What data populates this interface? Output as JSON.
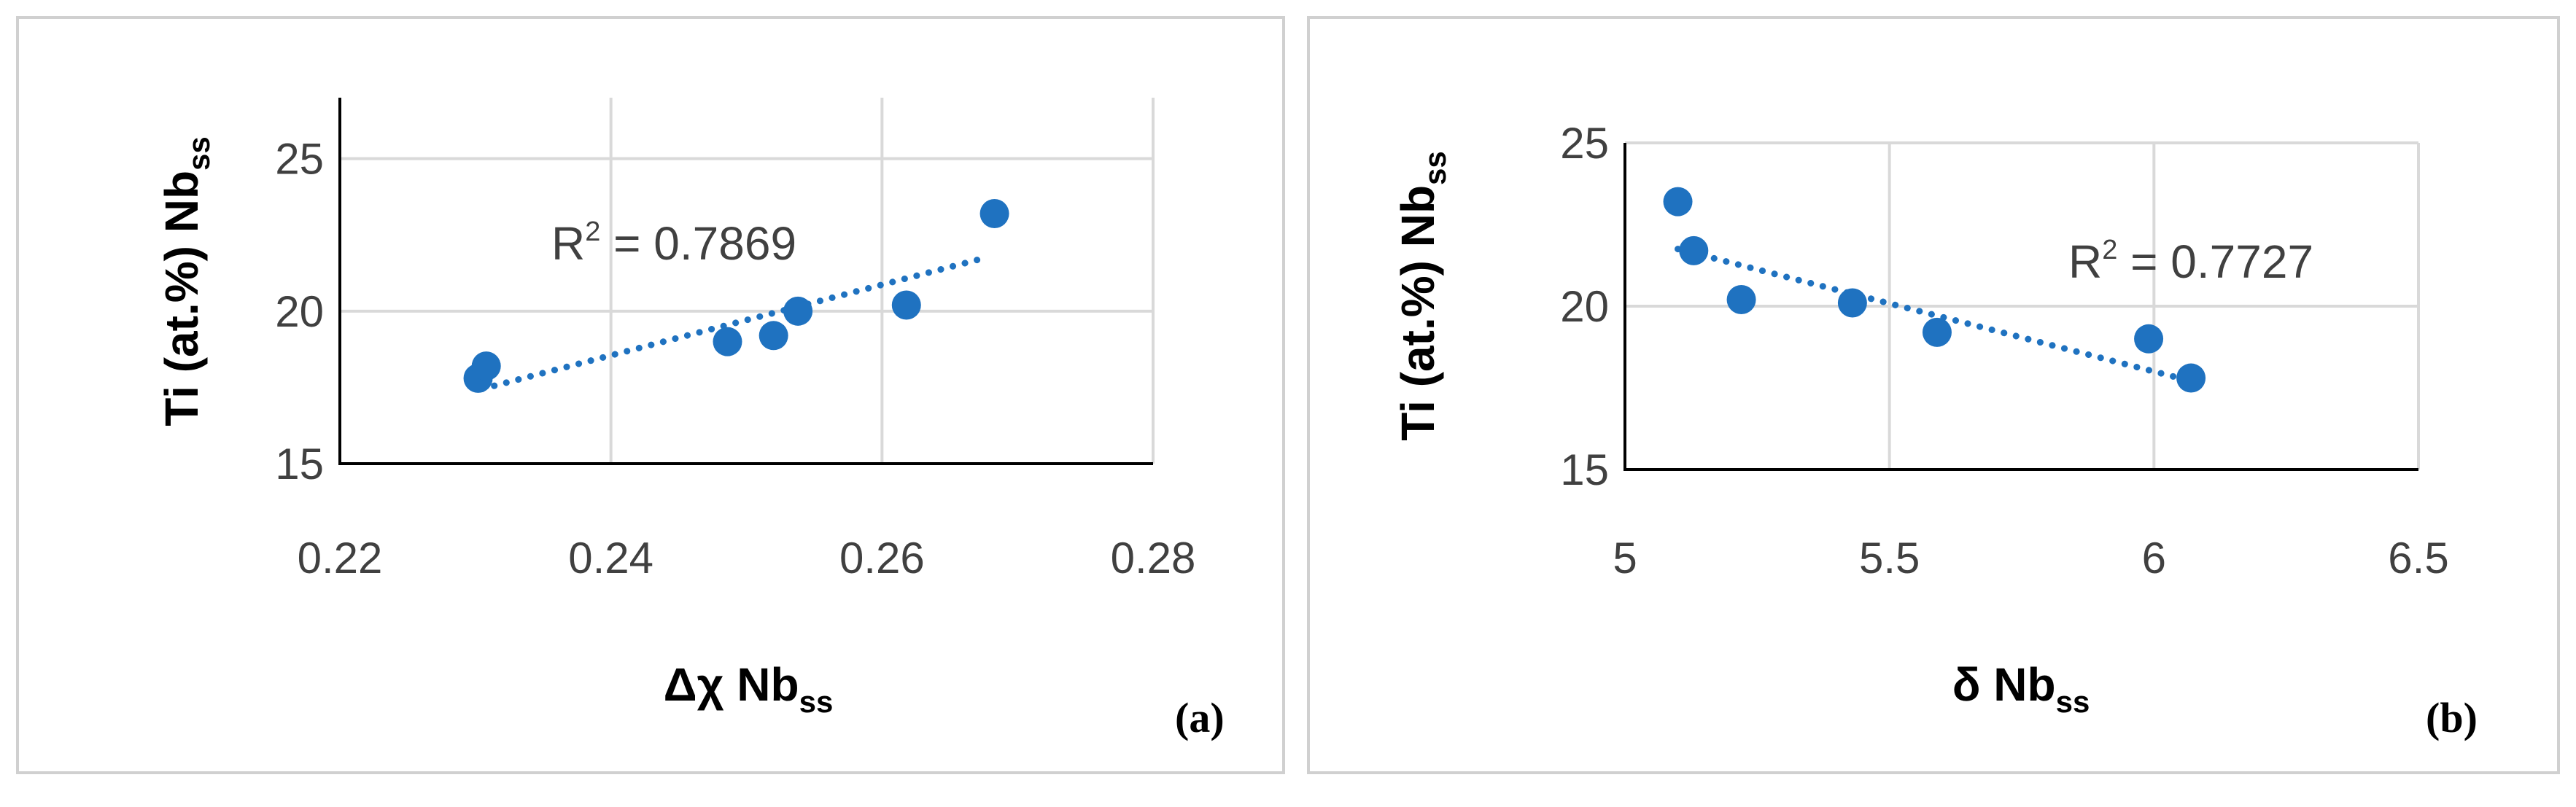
{
  "chart_data": [
    {
      "type": "scatter",
      "panel_label": "(a)",
      "xlabel_main": "Δχ Nb",
      "xlabel_sub": "ss",
      "ylabel_main": "Ti (at.%) Nb",
      "ylabel_sub": "ss",
      "xlim": [
        0.22,
        0.28
      ],
      "ylim": [
        15,
        25
      ],
      "ylim_plot": [
        15,
        27
      ],
      "xticks": [
        "0.22",
        "0.24",
        "0.26",
        "0.28"
      ],
      "xtick_values": [
        0.22,
        0.24,
        0.26,
        0.28
      ],
      "yticks": [
        "15",
        "20",
        "25"
      ],
      "ytick_values": [
        15,
        20,
        25
      ],
      "grid": true,
      "trendline": {
        "type": "linear",
        "from": [
          0.2305,
          17.45
        ],
        "to": [
          0.2672,
          21.7
        ]
      },
      "r2_base": "R",
      "r2_sup": "2",
      "r2_value": " = 0.7869",
      "x": [
        0.2302,
        0.2308,
        0.2486,
        0.252,
        0.2538,
        0.2618,
        0.2683
      ],
      "y": [
        17.8,
        18.2,
        19.0,
        19.2,
        20.0,
        20.2,
        23.2
      ],
      "marker_color": "#1f72c0",
      "trend_color": "#1f72c0"
    },
    {
      "type": "scatter",
      "panel_label": "(b)",
      "xlabel_main": "δ Nb",
      "xlabel_sub": "ss",
      "ylabel_main": "Ti (at.%) Nb",
      "ylabel_sub": "ss",
      "xlim": [
        5,
        6.5
      ],
      "ylim": [
        15,
        25
      ],
      "ylim_plot": [
        15,
        25
      ],
      "xticks": [
        "5",
        "5.5",
        "6",
        "6.5"
      ],
      "xtick_values": [
        5,
        5.5,
        6,
        6.5
      ],
      "yticks": [
        "15",
        "20",
        "25"
      ],
      "ytick_values": [
        15,
        20,
        25
      ],
      "grid": true,
      "trendline": {
        "type": "linear",
        "from": [
          5.1,
          21.75
        ],
        "to": [
          6.06,
          17.75
        ]
      },
      "r2_base": "R",
      "r2_sup": "2",
      "r2_value": " = 0.7727",
      "x": [
        5.1,
        5.13,
        5.22,
        5.43,
        5.59,
        5.99,
        6.07
      ],
      "y": [
        23.2,
        21.7,
        20.2,
        20.1,
        19.2,
        19.0,
        17.8
      ],
      "marker_color": "#1f72c0",
      "trend_color": "#1f72c0"
    }
  ]
}
